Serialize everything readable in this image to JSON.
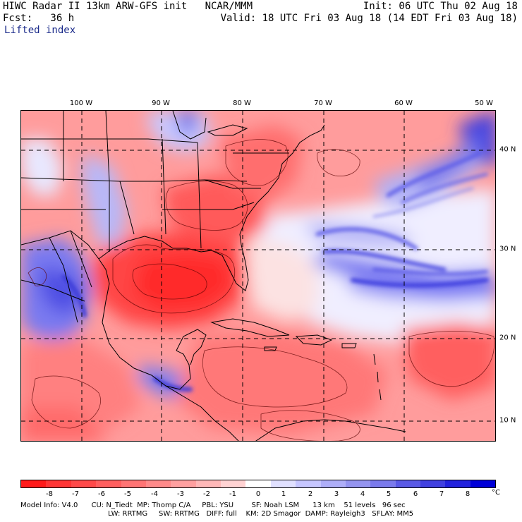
{
  "header": {
    "title": "HIWC Radar II 13km ARW-GFS init   NCAR/MMM",
    "fcst": "Fcst:   36 h",
    "field": "Lifted index",
    "init": "Init: 06 UTC Thu 02 Aug 18",
    "valid": "Valid: 18 UTC Fri 03 Aug 18 (14 EDT Fri 03 Aug 18)"
  },
  "map": {
    "longitude_labels": [
      "100 W",
      "90 W",
      "80 W",
      "70 W",
      "60 W",
      "50 W"
    ],
    "latitude_labels": [
      "40 N",
      "30 N",
      "20 N",
      "10 N"
    ]
  },
  "colorbar": {
    "tick_labels": [
      "-8",
      "-7",
      "-6",
      "-5",
      "-4",
      "-3",
      "-2",
      "-1",
      "0",
      "1",
      "2",
      "3",
      "4",
      "5",
      "6",
      "7",
      "8"
    ],
    "unit": "°C",
    "colors": [
      "#ff1a1a",
      "#ff3535",
      "#ff4a4a",
      "#ff5f5f",
      "#ff7474",
      "#ff8a8a",
      "#ffa0a0",
      "#ffb8b8",
      "#ffd2d2",
      "#ffffff",
      "#e0e0ff",
      "#c6c6ff",
      "#aeaef8",
      "#9494f0",
      "#7a7aec",
      "#5a5ae6",
      "#4040e0",
      "#2222dd",
      "#0000d8"
    ]
  },
  "footer": {
    "line1": "Model Info: V4.0      CU: N_Tiedt  MP: Thomp C/A     PBL: YSU        SF: Noah LSM      13 km    51 levels   96 sec",
    "line2": "LW: RRTMG     SW: RRTMG   DIFF: full    KM: 2D Smagor  DAMP: Rayleigh3   SFLAY: MM5"
  }
}
